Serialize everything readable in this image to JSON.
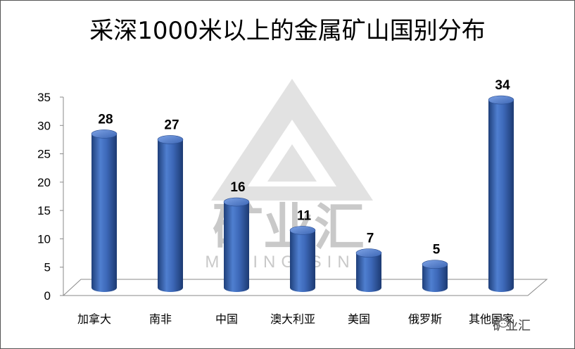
{
  "chart_data": {
    "type": "bar",
    "title": "采深1000米以上的金属矿山国别分布",
    "categories": [
      "加拿大",
      "南非",
      "中国",
      "澳大利亚",
      "美国",
      "俄罗斯",
      "其他国家"
    ],
    "values": [
      28,
      27,
      16,
      11,
      7,
      5,
      34
    ],
    "ylim": [
      0,
      35
    ],
    "yticks": [
      0,
      5,
      10,
      15,
      20,
      25,
      30,
      35
    ],
    "grid": false,
    "legend": "none",
    "bar_color": "#4472c4"
  },
  "watermark": {
    "chinese": "矿业汇",
    "english": "MINING SINK"
  },
  "brand": {
    "label": "矿业汇",
    "icon": "wechat-icon"
  }
}
